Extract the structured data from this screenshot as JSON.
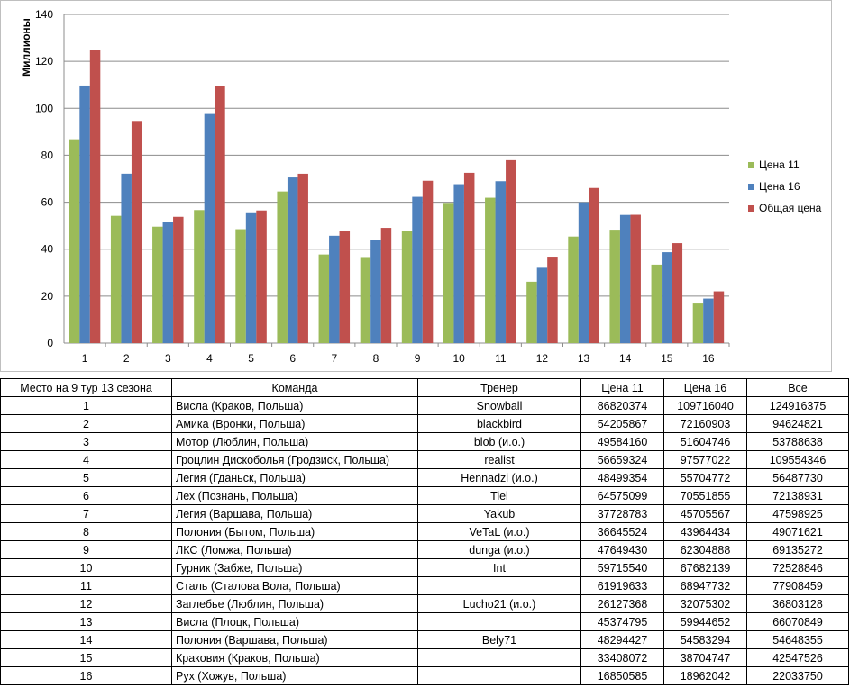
{
  "chart_data": {
    "type": "bar",
    "title": "",
    "xlabel": "",
    "ylabel": "Миллионы",
    "ylim": [
      0,
      140
    ],
    "yticks": [
      0,
      20,
      40,
      60,
      80,
      100,
      120,
      140
    ],
    "grid": true,
    "legend_position": "right",
    "categories": [
      "1",
      "2",
      "3",
      "4",
      "5",
      "6",
      "7",
      "8",
      "9",
      "10",
      "11",
      "12",
      "13",
      "14",
      "15",
      "16"
    ],
    "series": [
      {
        "name": "Цена 11",
        "color": "#9bbb59",
        "values": [
          86.820374,
          54.205867,
          49.58416,
          56.659324,
          48.499354,
          64.575099,
          37.728783,
          36.645524,
          47.64943,
          59.71554,
          61.919633,
          26.127368,
          45.374795,
          48.294427,
          33.408072,
          16.850585
        ]
      },
      {
        "name": "Цена 16",
        "color": "#4f81bd",
        "values": [
          109.71604,
          72.160903,
          51.604746,
          97.577022,
          55.704772,
          70.551855,
          45.705567,
          43.964434,
          62.304888,
          67.682139,
          68.947732,
          32.075302,
          59.944652,
          54.583294,
          38.704747,
          18.962042
        ]
      },
      {
        "name": "Общая цена",
        "color": "#c0504d",
        "values": [
          124.916375,
          94.624821,
          53.788638,
          109.554346,
          56.48773,
          72.138931,
          47.598925,
          49.071621,
          69.135272,
          72.528846,
          77.908459,
          36.803128,
          66.070849,
          54.648355,
          42.547526,
          22.03375
        ]
      }
    ]
  },
  "table": {
    "headers": [
      "Место на 9 тур 13 сезона",
      "Команда",
      "Тренер",
      "Цена 11",
      "Цена 16",
      "Все"
    ],
    "rows": [
      [
        "1",
        "Висла (Краков, Польша)",
        "Snowball",
        "86820374",
        "109716040",
        "124916375"
      ],
      [
        "2",
        "Амика (Вронки, Польша)",
        "blackbird",
        "54205867",
        "72160903",
        "94624821"
      ],
      [
        "3",
        "Мотор (Люблин, Польша)",
        "blob (и.о.)",
        "49584160",
        "51604746",
        "53788638"
      ],
      [
        "4",
        "Гроцлин Дискоболья (Гродзиск, Польша)",
        "realist",
        "56659324",
        "97577022",
        "109554346"
      ],
      [
        "5",
        "Легия (Гданьск, Польша)",
        "Hennadzi (и.о.)",
        "48499354",
        "55704772",
        "56487730"
      ],
      [
        "6",
        "Лех (Познань, Польша)",
        "Tiel",
        "64575099",
        "70551855",
        "72138931"
      ],
      [
        "7",
        "Легия (Варшава, Польша)",
        "Yakub",
        "37728783",
        "45705567",
        "47598925"
      ],
      [
        "8",
        "Полония (Бытом, Польша)",
        "VeTaL (и.о.)",
        "36645524",
        "43964434",
        "49071621"
      ],
      [
        "9",
        "ЛКС (Ломжа, Польша)",
        "dunga (и.о.)",
        "47649430",
        "62304888",
        "69135272"
      ],
      [
        "10",
        "Гурник (Забже, Польша)",
        "Int",
        "59715540",
        "67682139",
        "72528846"
      ],
      [
        "11",
        "Сталь (Сталова Вола, Польша)",
        "",
        "61919633",
        "68947732",
        "77908459"
      ],
      [
        "12",
        "Заглебье (Люблин, Польша)",
        "Lucho21 (и.о.)",
        "26127368",
        "32075302",
        "36803128"
      ],
      [
        "13",
        "Висла (Плоцк, Польша)",
        "",
        "45374795",
        "59944652",
        "66070849"
      ],
      [
        "14",
        "Полония (Варшава, Польша)",
        "Bely71",
        "48294427",
        "54583294",
        "54648355"
      ],
      [
        "15",
        "Краковия (Краков, Польша)",
        "",
        "33408072",
        "38704747",
        "42547526"
      ],
      [
        "16",
        "Рух (Хожув, Польша)",
        "",
        "16850585",
        "18962042",
        "22033750"
      ]
    ]
  }
}
